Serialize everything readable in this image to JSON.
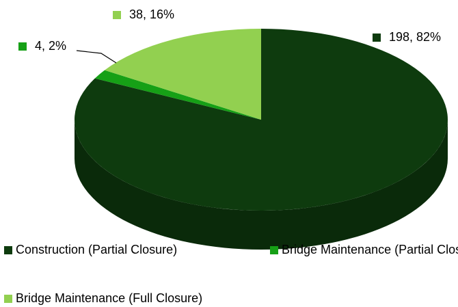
{
  "chart_data": {
    "type": "pie3d",
    "categories": [
      "Construction (Partial Closure)",
      "Bridge Maintenance (Partial Closure)",
      "Bridge Maintenance (Full Closure)"
    ],
    "values": [
      198,
      4,
      38
    ],
    "value_labels": [
      "198, 82%",
      "4, 2%",
      "38, 16%"
    ],
    "colors": [
      "#0e3b0e",
      "#16a016",
      "#92d050"
    ],
    "legend": "bottom"
  }
}
